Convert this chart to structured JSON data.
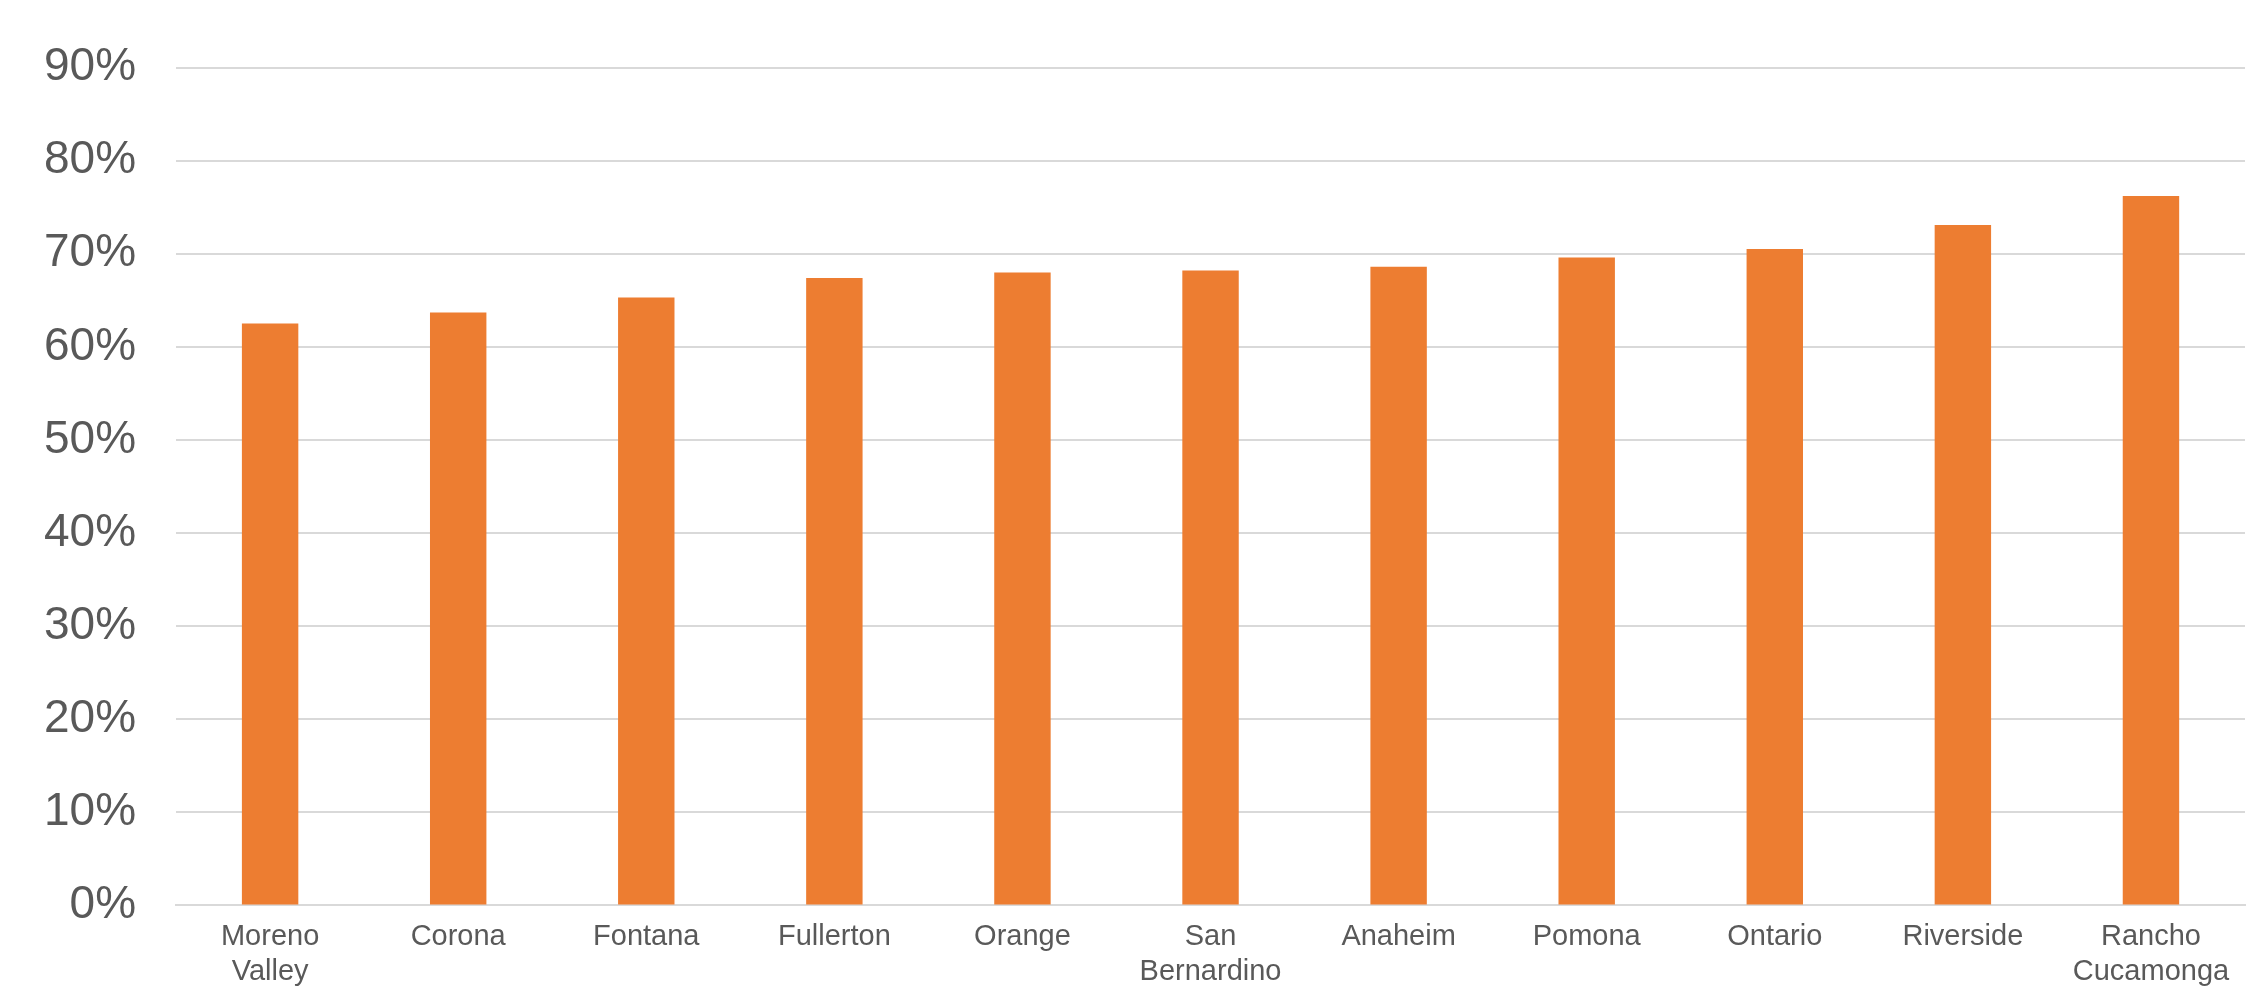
{
  "chart_data": {
    "type": "bar",
    "categories": [
      "Moreno Valley",
      "Corona",
      "Fontana",
      "Fullerton",
      "Orange",
      "San Bernardino",
      "Anaheim",
      "Pomona",
      "Ontario",
      "Riverside",
      "Rancho Cucamonga"
    ],
    "values": [
      62.5,
      63.7,
      65.3,
      67.4,
      68.0,
      68.2,
      68.6,
      69.6,
      70.5,
      73.1,
      76.2
    ],
    "color": "#ed7d31",
    "ylim": [
      0,
      90
    ],
    "yticks": [
      {
        "value": 0,
        "label": "0%"
      },
      {
        "value": 10,
        "label": "10%"
      },
      {
        "value": 20,
        "label": "20%"
      },
      {
        "value": 30,
        "label": "30%"
      },
      {
        "value": 40,
        "label": "40%"
      },
      {
        "value": 50,
        "label": "50%"
      },
      {
        "value": 60,
        "label": "60%"
      },
      {
        "value": 70,
        "label": "70%"
      },
      {
        "value": 80,
        "label": "80%"
      },
      {
        "value": 90,
        "label": "90%"
      }
    ],
    "grid": "y",
    "legend": false
  }
}
